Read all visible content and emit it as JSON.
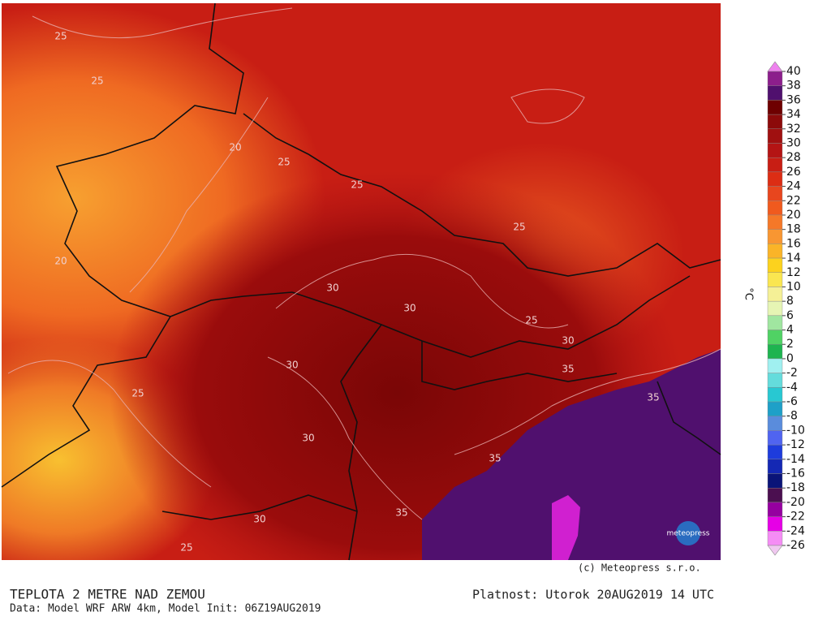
{
  "map": {
    "copyright": "(c) Meteopress s.r.o.",
    "logo": "meteopress",
    "contour_labels": [
      "25",
      "25",
      "25",
      "25",
      "25",
      "25",
      "25",
      "25",
      "30",
      "30",
      "30",
      "30",
      "30",
      "30",
      "35",
      "35",
      "35",
      "35",
      "20",
      "20"
    ]
  },
  "colorbar": {
    "unit": "°C",
    "ticks": [
      40,
      38,
      36,
      34,
      32,
      30,
      28,
      26,
      24,
      22,
      20,
      18,
      16,
      14,
      12,
      10,
      8,
      6,
      4,
      2,
      0,
      -2,
      -4,
      -6,
      -8,
      -10,
      -12,
      -14,
      -16,
      -18,
      -20,
      -22,
      -24,
      -26
    ],
    "colors": [
      "#ee82ee",
      "#8c1e8c",
      "#50106e",
      "#6e0000",
      "#8c0a0a",
      "#a01010",
      "#b41414",
      "#c81e14",
      "#dc2d14",
      "#e8461e",
      "#f05a1e",
      "#f57828",
      "#f89632",
      "#fab428",
      "#fcd21e",
      "#fae650",
      "#f5f096",
      "#e6f5b4",
      "#a0e6a0",
      "#50d264",
      "#1eb450",
      "#a0f0f0",
      "#64dcdc",
      "#28c8d2",
      "#1ea0c8",
      "#5a8cdc",
      "#5064f0",
      "#1e3cdc",
      "#1428b4",
      "#0a1478",
      "#4b0f50",
      "#9600a0",
      "#e600e6",
      "#f58cf5",
      "#f0c8f0"
    ]
  },
  "footer": {
    "title": "TEPLOTA 2 METRE NAD ZEMOU",
    "data_line": "Data: Model WRF ARW 4km, Model Init: 06Z19AUG2019",
    "validity": "Platnost: Utorok 20AUG2019 14 UTC"
  }
}
